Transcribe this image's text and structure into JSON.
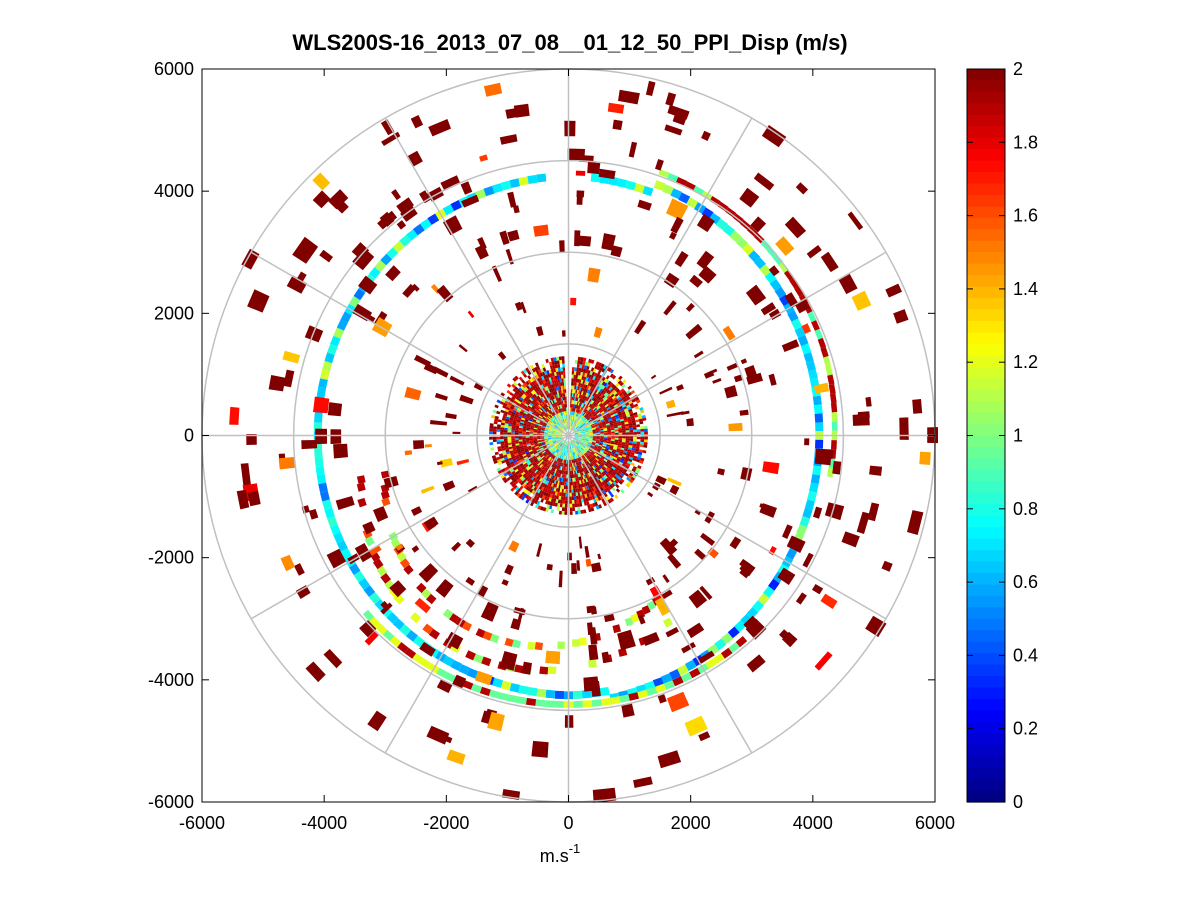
{
  "chart_data": {
    "type": "heatmap",
    "subtype": "polar-ppi",
    "title": "WLS200S-16_2013_07_08__01_12_50_PPI_Disp (m/s)",
    "xlabel": "m.s",
    "xlabel_superscript": "-1",
    "ylabel": "",
    "xlim": [
      -6000,
      6000
    ],
    "ylim": [
      -6000,
      6000
    ],
    "x_ticks": [
      "-6000",
      "-4000",
      "-2000",
      "0",
      "2000",
      "4000",
      "6000"
    ],
    "y_ticks": [
      "6000",
      "4000",
      "2000",
      "0",
      "-2000",
      "-4000",
      "-6000"
    ],
    "polar_grid": {
      "range_rings": [
        1500,
        3000,
        4500,
        6000
      ],
      "spokes_deg": [
        0,
        30,
        60,
        90,
        120,
        150,
        180,
        210,
        240,
        270,
        300,
        330
      ]
    },
    "colorbar": {
      "colormap": "jet",
      "clim": [
        0,
        2
      ],
      "tick_labels": [
        "2",
        "1.8",
        "1.6",
        "1.4",
        "1.2",
        "1",
        "0.8",
        "0.6",
        "0.4",
        "0.2",
        "0"
      ]
    },
    "series": [
      {
        "name": "near-field clutter",
        "radius_m": [
          0,
          1500
        ],
        "coverage": "full 360°, mostly high (>=1.6 m/s) with mixed values",
        "representative_value": 1.9
      },
      {
        "name": "mid ring",
        "radius_m": [
          3900,
          4500
        ],
        "coverage": "near-continuous ring",
        "representative_value": 0.7
      },
      {
        "name": "south arc",
        "radius_m": [
          3000,
          4300
        ],
        "coverage": "south-west to south-east arc",
        "representative_value": 1.1
      },
      {
        "name": "scattered far returns",
        "radius_m": [
          1500,
          6000
        ],
        "coverage": "sparse",
        "representative_value": 2.0
      }
    ]
  },
  "colors": {
    "grid": "#c0c0c0",
    "axis": "#000000",
    "background": "#ffffff"
  }
}
